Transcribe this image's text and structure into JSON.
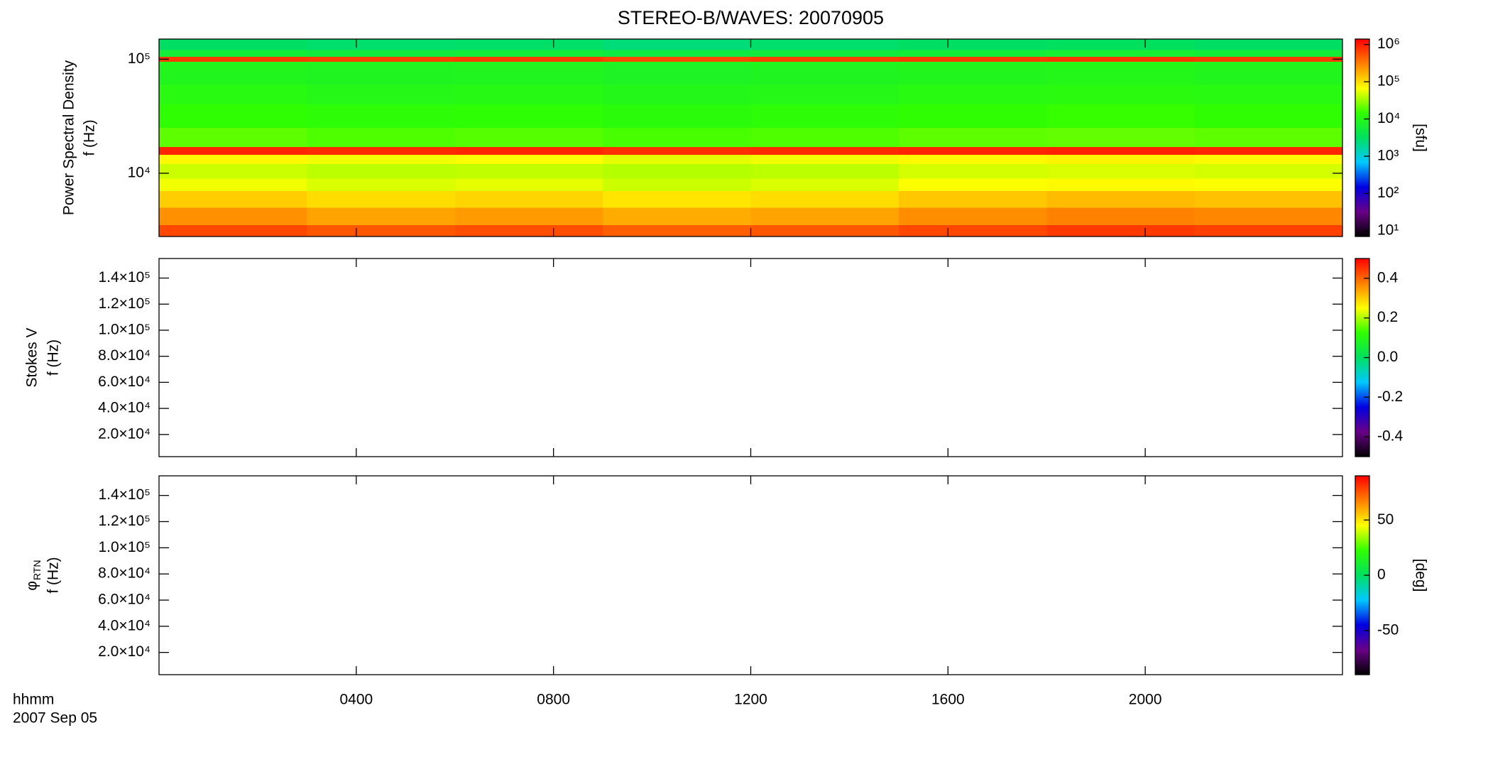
{
  "colormap": [
    "#000000",
    "#6a0088",
    "#0000e0",
    "#00c8ff",
    "#00e060",
    "#30ff00",
    "#ffff00",
    "#ff8000",
    "#ff0000"
  ],
  "chart_data": [
    {
      "type": "heatmap",
      "title": "STEREO-B/WAVES: 20070905",
      "ylabel": "Power Spectral Density",
      "ylabel2": "f (Hz)",
      "yscale": "log",
      "ylim": [
        2790,
        150000
      ],
      "yticks": [
        {
          "value": 10000,
          "label": "10⁴"
        },
        {
          "value": 100000,
          "label": "10⁵"
        }
      ],
      "xlim": [
        0,
        24
      ],
      "xticks": [
        4,
        8,
        12,
        16,
        20
      ],
      "x_edges": [
        0,
        3,
        6,
        9,
        12,
        15,
        18,
        21,
        24
      ],
      "y_edges": [
        2790,
        3500,
        5000,
        7000,
        9000,
        12000,
        14500,
        17000,
        25000,
        40000,
        60000,
        90000,
        95000,
        105000,
        120000,
        150000
      ],
      "values": [
        [
          600000,
          500000,
          550000,
          450000,
          500000,
          600000,
          700000,
          650000
        ],
        [
          250000,
          200000,
          220000,
          180000,
          200000,
          260000,
          300000,
          280000
        ],
        [
          120000,
          100000,
          110000,
          90000,
          100000,
          130000,
          150000,
          140000
        ],
        [
          60000,
          50000,
          55000,
          45000,
          50000,
          65000,
          70000,
          65000
        ],
        [
          45000,
          40000,
          42000,
          38000,
          40000,
          48000,
          50000,
          48000
        ],
        [
          70000,
          60000,
          65000,
          55000,
          60000,
          70000,
          75000,
          70000
        ],
        [
          900000,
          850000,
          900000,
          800000,
          850000,
          900000,
          950000,
          900000
        ],
        [
          20000,
          18000,
          19000,
          17000,
          18000,
          20000,
          21000,
          20000
        ],
        [
          14000,
          13000,
          13500,
          12000,
          13000,
          14000,
          15000,
          14000
        ],
        [
          11000,
          10000,
          10500,
          9500,
          10000,
          11000,
          11500,
          11000
        ],
        [
          9000,
          8500,
          8800,
          8000,
          8500,
          9000,
          9500,
          9000
        ],
        [
          10000,
          9500,
          9800,
          9000,
          9500,
          10000,
          10500,
          10000
        ],
        [
          700000,
          650000,
          700000,
          600000,
          650000,
          700000,
          750000,
          700000
        ],
        [
          6000,
          5500,
          5800,
          5000,
          5500,
          6000,
          6500,
          6000
        ],
        [
          3000,
          2800,
          2900,
          2500,
          2800,
          3000,
          3200,
          3000
        ]
      ],
      "colorbar": {
        "scale": "log",
        "clim": [
          7,
          1400000
        ],
        "label": "[sfu]",
        "ticks": [
          {
            "value": 10,
            "label": "10¹"
          },
          {
            "value": 100,
            "label": "10²"
          },
          {
            "value": 1000,
            "label": "10³"
          },
          {
            "value": 10000,
            "label": "10⁴"
          },
          {
            "value": 100000,
            "label": "10⁵"
          },
          {
            "value": 1000000,
            "label": "10⁶"
          }
        ]
      }
    },
    {
      "type": "heatmap",
      "ylabel": "Stokes V",
      "ylabel2": "f (Hz)",
      "yscale": "linear",
      "ylim": [
        3000,
        155000
      ],
      "yticks": [
        {
          "value": 20000,
          "label": "2.0×10⁴"
        },
        {
          "value": 40000,
          "label": "4.0×10⁴"
        },
        {
          "value": 60000,
          "label": "6.0×10⁴"
        },
        {
          "value": 80000,
          "label": "8.0×10⁴"
        },
        {
          "value": 100000,
          "label": "1.0×10⁵"
        },
        {
          "value": 120000,
          "label": "1.2×10⁵"
        },
        {
          "value": 140000,
          "label": "1.4×10⁵"
        }
      ],
      "xlim": [
        0,
        24
      ],
      "xticks": [
        4,
        8,
        12,
        16,
        20
      ],
      "colorbar": {
        "scale": "linear",
        "clim": [
          -0.5,
          0.5
        ],
        "ticks": [
          -0.4,
          -0.2,
          {
            "value": 0,
            "label": "0.0"
          },
          0.2,
          0.4
        ]
      }
    },
    {
      "type": "heatmap",
      "ylabel": "φ",
      "ylabel_sub": "RTN",
      "ylabel2": "f (Hz)",
      "yscale": "linear",
      "ylim": [
        3000,
        155000
      ],
      "yticks": [
        {
          "value": 20000,
          "label": "2.0×10⁴"
        },
        {
          "value": 40000,
          "label": "4.0×10⁴"
        },
        {
          "value": 60000,
          "label": "6.0×10⁴"
        },
        {
          "value": 80000,
          "label": "8.0×10⁴"
        },
        {
          "value": 100000,
          "label": "1.0×10⁵"
        },
        {
          "value": 120000,
          "label": "1.2×10⁵"
        },
        {
          "value": 140000,
          "label": "1.4×10⁵"
        }
      ],
      "xlim": [
        0,
        24
      ],
      "xticks": [
        {
          "value": 4,
          "label": "0400"
        },
        {
          "value": 8,
          "label": "0800"
        },
        {
          "value": 12,
          "label": "1200"
        },
        {
          "value": 16,
          "label": "1600"
        },
        {
          "value": 20,
          "label": "2000"
        }
      ],
      "xlabel": "hhmm",
      "date": "2007 Sep 05",
      "colorbar": {
        "scale": "linear",
        "clim": [
          -90,
          90
        ],
        "label": "[deg]",
        "ticks": [
          -50,
          0,
          50
        ]
      }
    }
  ]
}
